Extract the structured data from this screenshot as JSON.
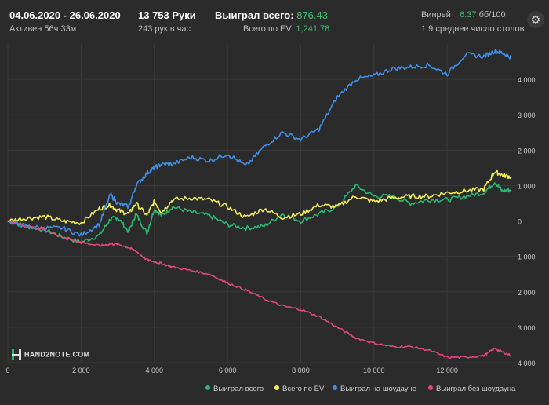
{
  "header": {
    "date_range": "04.06.2020 - 26.06.2020",
    "active": "Активен 56ч 33м",
    "hands": "13 753 Руки",
    "hands_per_hour": "243 рук в час",
    "won_total_label": "Выиграл всего:",
    "won_total_value": "876.43",
    "ev_label": "Всего по EV:",
    "ev_value": "1,241.78",
    "winrate_label": "Винрейт:",
    "winrate_value": "6.37",
    "winrate_unit": "бб/100",
    "tables": "1.9 среднее число столов"
  },
  "logo_text": "HAND2NOTE.COM",
  "colors": {
    "won": "#2bb673",
    "ev": "#f2ee5a",
    "showdown": "#3f8fe8",
    "non_showdown": "#e0477e",
    "grid": "#3a3a3a",
    "axis": "#c8c8c8"
  },
  "chart_data": {
    "type": "line",
    "xlim": [
      0,
      13753
    ],
    "ylim": [
      -4000,
      5000
    ],
    "x_ticks": [
      0,
      2000,
      4000,
      6000,
      8000,
      10000,
      12000
    ],
    "x_tick_labels": [
      "0",
      "2 000",
      "4 000",
      "6 000",
      "8 000",
      "10 000",
      "12 000"
    ],
    "y_ticks": [
      4000,
      3000,
      2000,
      1000,
      0,
      -1000,
      -2000,
      -3000,
      -4000
    ],
    "y_tick_labels": [
      "4 000",
      "3 000",
      "2 000",
      "1 000",
      "0",
      "1 000",
      "2 000",
      "3 000",
      "4 000"
    ],
    "grid": true,
    "legend_position": "bottom-right",
    "x": [
      0,
      500,
      1000,
      1500,
      2000,
      2500,
      2800,
      3000,
      3300,
      3500,
      3800,
      4000,
      4200,
      4500,
      5000,
      5500,
      6000,
      6500,
      7000,
      7500,
      8000,
      8500,
      9000,
      9500,
      10000,
      10500,
      11000,
      11500,
      12000,
      12500,
      13000,
      13300,
      13500,
      13753
    ],
    "series": [
      {
        "name": "Выиграл всего",
        "key": "won",
        "values": [
          0,
          -150,
          -250,
          -450,
          -600,
          -400,
          50,
          100,
          -300,
          200,
          -350,
          350,
          150,
          400,
          250,
          150,
          -100,
          -200,
          -150,
          200,
          0,
          200,
          400,
          1000,
          700,
          700,
          500,
          600,
          600,
          700,
          800,
          1100,
          850,
          876
        ]
      },
      {
        "name": "Всего по EV",
        "key": "ev",
        "values": [
          0,
          80,
          120,
          0,
          -50,
          350,
          450,
          300,
          200,
          500,
          150,
          550,
          250,
          600,
          650,
          600,
          400,
          100,
          350,
          100,
          200,
          450,
          400,
          700,
          550,
          650,
          700,
          700,
          800,
          850,
          900,
          1400,
          1300,
          1242
        ]
      },
      {
        "name": "Выиграл на шоудауне",
        "key": "showdown",
        "values": [
          0,
          -150,
          -200,
          -200,
          -400,
          -100,
          750,
          500,
          400,
          1000,
          1350,
          1500,
          1600,
          1600,
          1800,
          1700,
          1900,
          1550,
          2100,
          2500,
          2300,
          2600,
          3500,
          4000,
          4100,
          4300,
          4350,
          4400,
          4150,
          4700,
          4650,
          4800,
          4750,
          4620
        ]
      },
      {
        "name": "Выиграл без шоудауна",
        "key": "non_showdown",
        "values": [
          0,
          -150,
          -250,
          -450,
          -600,
          -700,
          -650,
          -650,
          -750,
          -850,
          -1100,
          -1150,
          -1200,
          -1300,
          -1400,
          -1500,
          -1750,
          -1950,
          -2200,
          -2400,
          -2500,
          -2700,
          -3000,
          -3300,
          -3450,
          -3550,
          -3550,
          -3650,
          -3850,
          -3850,
          -3800,
          -3600,
          -3700,
          -3800
        ]
      }
    ]
  }
}
